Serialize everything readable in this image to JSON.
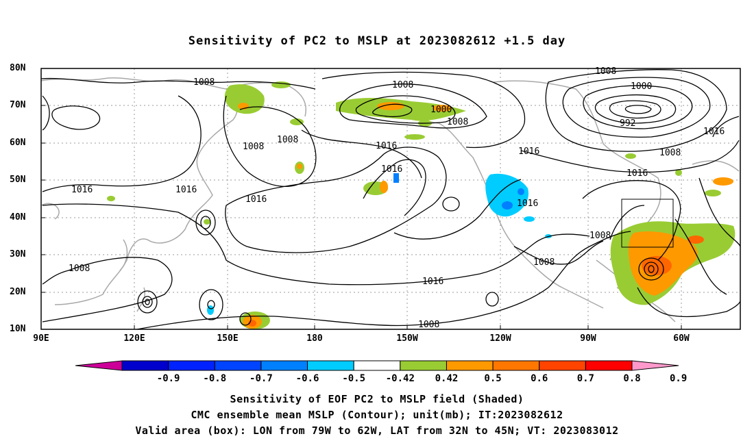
{
  "title": "Sensitivity of PC2 to MSLP at 2023082612 +1.5 day",
  "map": {
    "lat_labels": [
      "80N",
      "70N",
      "60N",
      "50N",
      "40N",
      "30N",
      "20N",
      "10N"
    ],
    "lon_labels": [
      "90E",
      "120E",
      "150E",
      "180",
      "150W",
      "120W",
      "90W",
      "60W"
    ],
    "contour_labels": [
      "1008",
      "1008",
      "1000",
      "1008",
      "1008",
      "1008",
      "1016",
      "1016",
      "1016",
      "1016",
      "1016",
      "1016",
      "1016",
      "1016",
      "1008",
      "1008",
      "1008",
      "1008",
      "1000",
      "992",
      "1016",
      "1008",
      "1016",
      "1008"
    ],
    "valid_box": {
      "lon_from": "79W",
      "lon_to": "62W",
      "lat_from": "32N",
      "lat_to": "45N"
    },
    "colors": {
      "land": "#a8a8a8",
      "contour": "#000000",
      "shade_pos_050": "#99cc33",
      "shade_pos_060": "#ff9900",
      "shade_pos_070": "#ff6600",
      "shade_neg_050": "#00ccff",
      "shade_neg_060": "#0080ff"
    }
  },
  "colorbar": {
    "labels": [
      "-0.9",
      "-0.8",
      "-0.7",
      "-0.6",
      "-0.5",
      "-0.42",
      "0.42",
      "0.5",
      "0.6",
      "0.7",
      "0.8",
      "0.9"
    ],
    "colors": [
      "#cc0099",
      "#0000cc",
      "#0022ff",
      "#0044ff",
      "#0080ff",
      "#00ccff",
      "#ffffff",
      "#99cc33",
      "#ff9900",
      "#ff7700",
      "#ff4400",
      "#ff0000",
      "#ff99cc"
    ]
  },
  "captions": [
    "Sensitivity of EOF PC2 to MSLP field (Shaded)",
    "CMC ensemble mean MSLP (Contour); unit(mb); IT:2023082612",
    "Valid area (box): LON from 79W to 62W, LAT from 32N to 45N; VT: 2023083012"
  ]
}
